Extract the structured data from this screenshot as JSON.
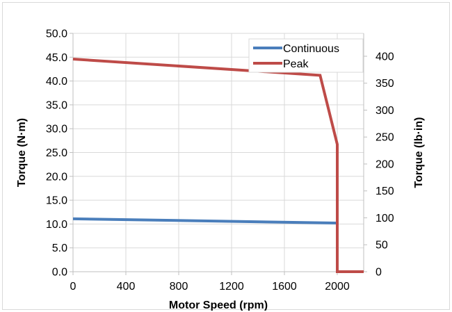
{
  "chart_data": {
    "type": "line",
    "title": "",
    "xlabel": "Motor Speed (rpm)",
    "ylabel": "Torque (N·m)",
    "y2label": "Torque (lb·in)",
    "xlim": [
      0,
      2200
    ],
    "ylim": [
      0,
      50
    ],
    "y2lim": [
      0,
      442.5
    ],
    "x_ticks": [
      0,
      400,
      800,
      1200,
      1600,
      2000
    ],
    "x_tick_labels": [
      "0",
      "400",
      "800",
      "1200",
      "1600",
      "2000"
    ],
    "y_ticks": [
      0,
      5,
      10,
      15,
      20,
      25,
      30,
      35,
      40,
      45,
      50
    ],
    "y_tick_labels": [
      "0.0",
      "5.0",
      "10.0",
      "15.0",
      "20.0",
      "25.0",
      "30.0",
      "35.0",
      "40.0",
      "45.0",
      "50.0"
    ],
    "y2_ticks": [
      0,
      50,
      100,
      150,
      200,
      250,
      300,
      350,
      400
    ],
    "y2_tick_labels": [
      "0",
      "50",
      "100",
      "150",
      "200",
      "250",
      "300",
      "350",
      "400"
    ],
    "grid": true,
    "legend_position": "top-right",
    "series": [
      {
        "name": "Continuous",
        "color": "#4a7ebb",
        "x": [
          0,
          2000
        ],
        "y": [
          11.1,
          10.2
        ]
      },
      {
        "name": "Peak",
        "color": "#be4b48",
        "x": [
          0,
          1870,
          2000,
          2000,
          2200
        ],
        "y": [
          44.6,
          41.2,
          26.7,
          0,
          0
        ]
      }
    ]
  }
}
